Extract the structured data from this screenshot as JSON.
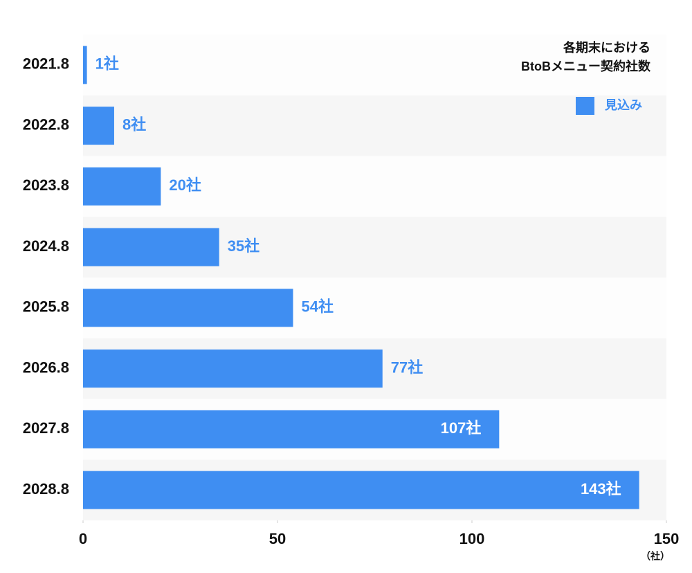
{
  "chart_data": {
    "type": "bar",
    "orientation": "horizontal",
    "title": [
      "各期末における",
      "BtoBメニュー契約社数"
    ],
    "categories": [
      "2021.8",
      "2022.8",
      "2023.8",
      "2024.8",
      "2025.8",
      "2026.8",
      "2027.8",
      "2028.8"
    ],
    "series": [
      {
        "name": "見込み",
        "color": "#3f8ef2",
        "values": [
          1,
          8,
          20,
          35,
          54,
          77,
          107,
          143
        ],
        "value_labels": [
          "1社",
          "8社",
          "20社",
          "35社",
          "54社",
          "77社",
          "107社",
          "143社"
        ]
      }
    ],
    "xlim": [
      0,
      150
    ],
    "xticks": [
      0,
      50,
      100,
      150
    ],
    "x_unit_label": "（社）",
    "legend": "top-right"
  }
}
